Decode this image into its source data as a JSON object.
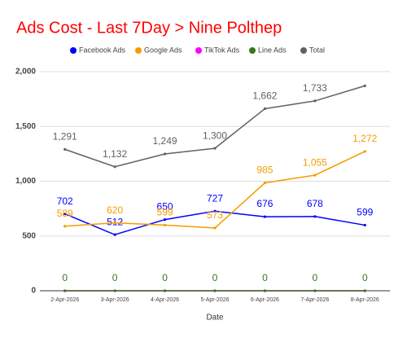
{
  "chart_data": {
    "type": "line",
    "title": "Ads Cost - Last 7Day > Nine Polthep",
    "x_label": "Date",
    "categories": [
      "2-Apr-2026",
      "3-Apr-2026",
      "4-Apr-2026",
      "5-Apr-2026",
      "6-Apr-2026",
      "7-Apr-2026",
      "8-Apr-2026"
    ],
    "series": [
      {
        "name": "Facebook Ads",
        "color": "#0000ff",
        "data_labels": true,
        "values": [
          702,
          512,
          650,
          727,
          676,
          678,
          599
        ]
      },
      {
        "name": "Google Ads",
        "color": "#f59b00",
        "data_labels": true,
        "values": [
          589,
          620,
          599,
          573,
          985,
          1055,
          1272
        ],
        "value_labels": [
          "589",
          "620",
          "599",
          "573",
          "985",
          "1,055",
          "1,272"
        ]
      },
      {
        "name": "TikTok Ads",
        "color": "#ff00ff",
        "data_labels": false,
        "values": [
          0,
          0,
          0,
          0,
          0,
          0,
          0
        ]
      },
      {
        "name": "Line Ads",
        "color": "#38761d",
        "data_labels": true,
        "values": [
          0,
          0,
          0,
          0,
          0,
          0,
          0
        ]
      },
      {
        "name": "Total",
        "color": "#616161",
        "data_labels": true,
        "values": [
          1291,
          1132,
          1249,
          1300,
          1662,
          1733,
          1871
        ],
        "value_labels": [
          "1,291",
          "1,132",
          "1,249",
          "1,300",
          "1,662",
          "1,733",
          null
        ]
      }
    ],
    "ylim": [
      0,
      2000
    ],
    "yticks": [
      0,
      500,
      {
        "value": 1000,
        "label": "1,000"
      },
      {
        "value": 1500,
        "label": "1,500"
      },
      {
        "value": 2000,
        "label": "2,000"
      }
    ],
    "grid": true,
    "legend": "top"
  }
}
